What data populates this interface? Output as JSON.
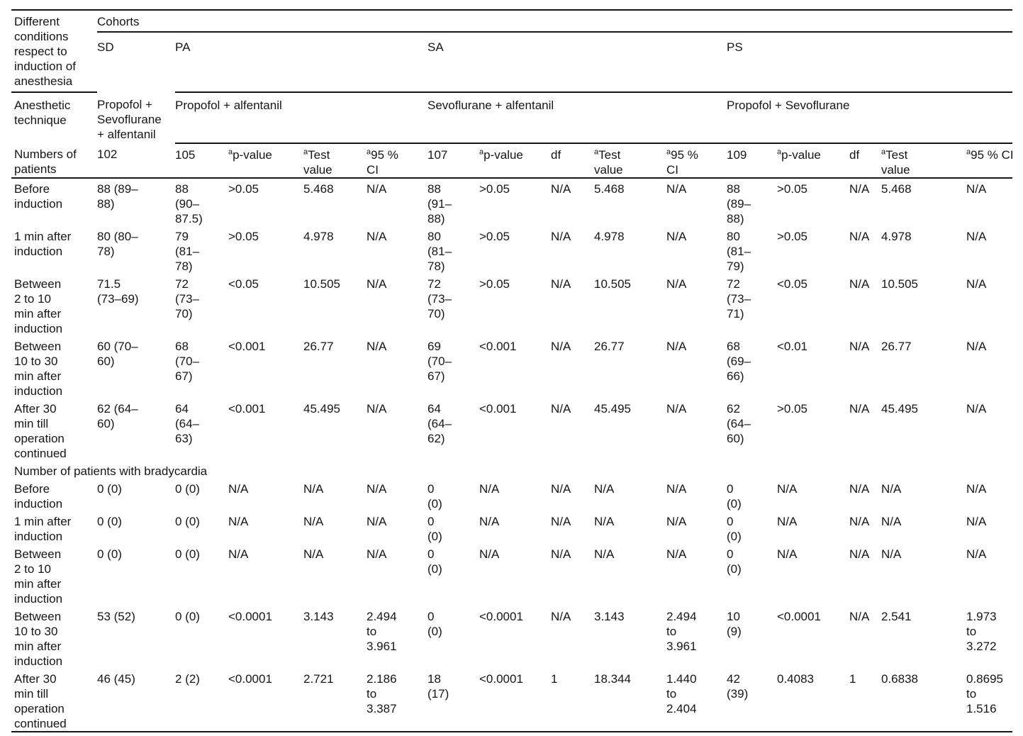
{
  "table": {
    "corner_header": "Different\nconditions\nrespect to\ninduction of\nanesthesia",
    "cohorts_label": "Cohorts",
    "anesthetic_row_label": "Anesthetic\ntechnique",
    "numbers_row_label": "Numbers of\npatients",
    "superscript_note": "a",
    "groups": [
      {
        "code": "SD",
        "technique": "Propofol +\nSevoflurane\n+ alfentanil",
        "n": "102"
      },
      {
        "code": "PA",
        "technique": "Propofol + alfentanil",
        "n": "105"
      },
      {
        "code": "SA",
        "technique": "Sevoflurane + alfentanil",
        "n": "107"
      },
      {
        "code": "PS",
        "technique": "Propofol + Sevoflurane",
        "n": "109"
      }
    ],
    "stat_header_labels": {
      "p": "p-value",
      "df": "df",
      "test": "Test\nvalue",
      "ci_two_line": "95 %\nCI",
      "ci_one_line": "95 % CI"
    },
    "sections": [
      {
        "rows": [
          {
            "label": "Before\ninduction",
            "cells": [
              "88 (89–\n88)",
              "88\n(90–\n87.5)",
              ">0.05",
              "5.468",
              "N/A",
              "88\n(91–\n88)",
              ">0.05",
              "N/A",
              "5.468",
              "N/A",
              "88\n(89–\n88)",
              ">0.05",
              "N/A",
              "5.468",
              "N/A"
            ]
          },
          {
            "label": "1 min after\ninduction",
            "cells": [
              "80 (80–\n78)",
              "79\n(81–\n78)",
              ">0.05",
              "4.978",
              "N/A",
              "80\n(81–\n78)",
              ">0.05",
              "N/A",
              "4.978",
              "N/A",
              "80\n(81–\n79)",
              ">0.05",
              "N/A",
              "4.978",
              "N/A"
            ]
          },
          {
            "label": "Between\n2 to 10\nmin after\ninduction",
            "cells": [
              "71.5\n(73–69)",
              "72\n(73–\n70)",
              "<0.05",
              "10.505",
              "N/A",
              "72\n(73–\n70)",
              ">0.05",
              "N/A",
              "10.505",
              "N/A",
              "72\n(73–\n71)",
              "<0.05",
              "N/A",
              "10.505",
              "N/A"
            ]
          },
          {
            "label": "Between\n10 to 30\nmin after\ninduction",
            "cells": [
              "60 (70–\n60)",
              "68\n(70–\n67)",
              "<0.001",
              "26.77",
              "N/A",
              "69\n(70–\n67)",
              "<0.001",
              "N/A",
              "26.77",
              "N/A",
              "68\n(69–\n66)",
              "<0.01",
              "N/A",
              "26.77",
              "N/A"
            ]
          },
          {
            "label": "After 30\nmin till\noperation\ncontinued",
            "cells": [
              "62 (64–\n60)",
              "64\n(64–\n63)",
              "<0.001",
              "45.495",
              "N/A",
              "64\n(64–\n62)",
              "<0.001",
              "N/A",
              "45.495",
              "N/A",
              "62\n(64–\n60)",
              ">0.05",
              "N/A",
              "45.495",
              "N/A"
            ]
          }
        ]
      },
      {
        "title": "Number of patients with bradycardia",
        "rows": [
          {
            "label": "Before\ninduction",
            "cells": [
              "0 (0)",
              "0 (0)",
              "N/A",
              "N/A",
              "N/A",
              "0\n(0)",
              "N/A",
              "N/A",
              "N/A",
              "N/A",
              "0\n(0)",
              "N/A",
              "N/A",
              "N/A",
              "N/A"
            ]
          },
          {
            "label": "1 min after\ninduction",
            "cells": [
              "0 (0)",
              "0 (0)",
              "N/A",
              "N/A",
              "N/A",
              "0\n(0)",
              "N/A",
              "N/A",
              "N/A",
              "N/A",
              "0\n(0)",
              "N/A",
              "N/A",
              "N/A",
              "N/A"
            ]
          },
          {
            "label": "Between\n2 to 10\nmin after\ninduction",
            "cells": [
              "0 (0)",
              "0 (0)",
              "N/A",
              "N/A",
              "N/A",
              "0\n(0)",
              "N/A",
              "N/A",
              "N/A",
              "N/A",
              "0\n(0)",
              "N/A",
              "N/A",
              "N/A",
              "N/A"
            ]
          },
          {
            "label": "Between\n10 to 30\nmin after\ninduction",
            "cells": [
              "53 (52)",
              "0 (0)",
              "<0.0001",
              "3.143",
              "2.494\nto\n3.961",
              "0\n(0)",
              "<0.0001",
              "N/A",
              "3.143",
              "2.494\nto\n3.961",
              "10\n(9)",
              "<0.0001",
              "N/A",
              "2.541",
              "1.973\nto\n3.272"
            ]
          },
          {
            "label": "After 30\nmin till\noperation\ncontinued",
            "cells": [
              "46 (45)",
              "2 (2)",
              "<0.0001",
              "2.721",
              "2.186\nto\n3.387",
              "18\n(17)",
              "<0.0001",
              "1",
              "18.344",
              "1.440\nto\n2.404",
              "42\n(39)",
              "0.4083",
              "1",
              "0.6838",
              "0.8695\nto\n1.516"
            ]
          }
        ]
      }
    ]
  }
}
